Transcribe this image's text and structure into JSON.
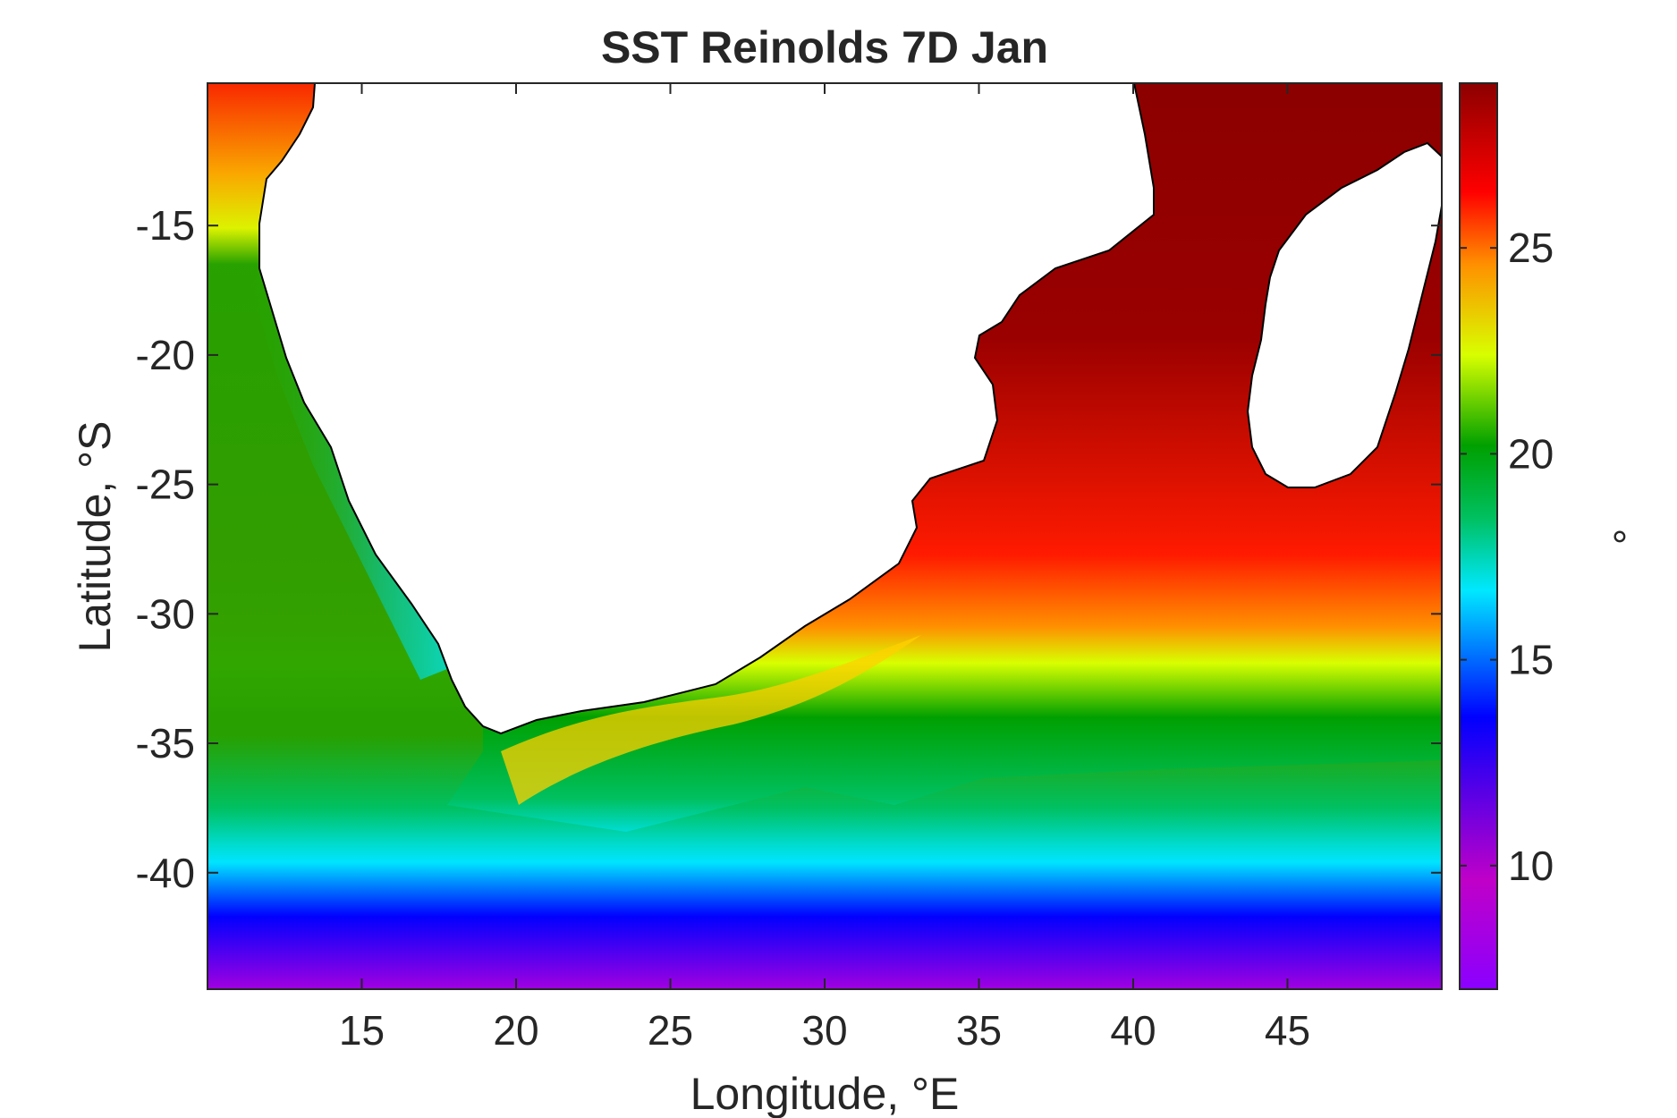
{
  "chart_data": {
    "type": "heatmap",
    "title": "SST Reinolds 7D Jan",
    "xlabel": "Longitude, °E",
    "ylabel": "Latitude, °S",
    "xlim": [
      10,
      50
    ],
    "ylim": [
      -44.5,
      -9.5
    ],
    "xticks": [
      15,
      20,
      25,
      30,
      35,
      40,
      45
    ],
    "xtick_labels": [
      "15",
      "20",
      "25",
      "30",
      "35",
      "40",
      "45"
    ],
    "yticks": [
      -15,
      -20,
      -25,
      -30,
      -35,
      -40
    ],
    "ytick_labels": [
      "-15",
      "-20",
      "-25",
      "-30",
      "-35",
      "-40"
    ],
    "colorbar": {
      "label": "°",
      "range": [
        7,
        29
      ],
      "ticks": [
        10,
        15,
        20,
        25
      ],
      "tick_labels": [
        "10",
        "15",
        "20",
        "25"
      ],
      "colormap": [
        "#8a00ff",
        "#c000c8",
        "#0000ff",
        "#00e8ff",
        "#00c060",
        "#00a000",
        "#d8ff00",
        "#ff9000",
        "#ff0000",
        "#8c0000"
      ]
    },
    "land_color": "#ffffff",
    "coastline_color": "#000000",
    "regions": [
      "Southern Africa",
      "Madagascar"
    ],
    "sst_samples": [
      {
        "lon": 11,
        "lat": -12,
        "sst": 26.5
      },
      {
        "lon": 11,
        "lat": -15,
        "sst": 23.5
      },
      {
        "lon": 12,
        "lat": -20,
        "sst": 19.5
      },
      {
        "lon": 14,
        "lat": -25,
        "sst": 16.0
      },
      {
        "lon": 17,
        "lat": -31,
        "sst": 17.5
      },
      {
        "lon": 12,
        "lat": -30,
        "sst": 20.0
      },
      {
        "lon": 20,
        "lat": -38,
        "sst": 22.0
      },
      {
        "lon": 25,
        "lat": -36,
        "sst": 24.5
      },
      {
        "lon": 30,
        "lat": -32,
        "sst": 26.0
      },
      {
        "lon": 35,
        "lat": -28,
        "sst": 27.5
      },
      {
        "lon": 40,
        "lat": -20,
        "sst": 29.0
      },
      {
        "lon": 45,
        "lat": -30,
        "sst": 26.0
      },
      {
        "lon": 40,
        "lat": -37,
        "sst": 20.5
      },
      {
        "lon": 30,
        "lat": -41,
        "sst": 16.5
      },
      {
        "lon": 25,
        "lat": -43,
        "sst": 13.0
      },
      {
        "lon": 40,
        "lat": -44,
        "sst": 10.0
      }
    ]
  }
}
